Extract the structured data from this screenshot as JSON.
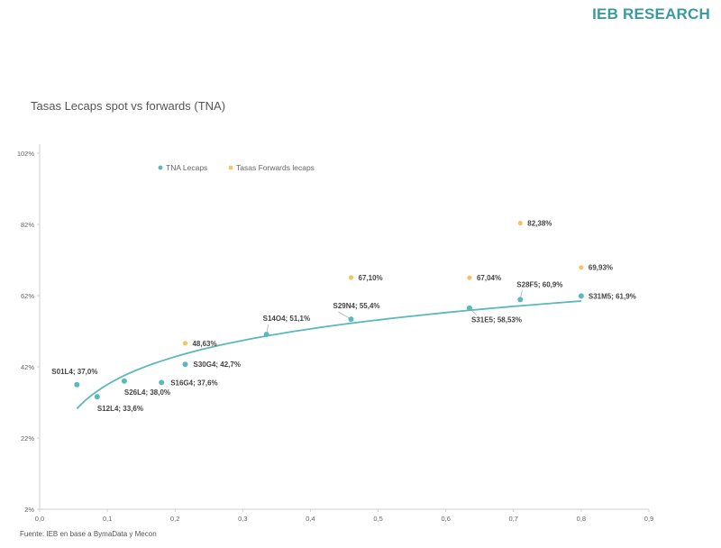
{
  "brand": "IEB RESEARCH",
  "source": "Fuente: IEB en base a BymaData y Mecon",
  "colors": {
    "spot": "#5bb8bd",
    "forward": "#f2c46a",
    "trend": "#5bb8bd",
    "axis": "#cfcfcf"
  },
  "chart_data": {
    "type": "scatter",
    "title": "Tasas Lecaps spot vs forwards (TNA)",
    "xlim": [
      0,
      0.9
    ],
    "ylim": [
      2,
      102
    ],
    "xticks": [
      0.0,
      0.1,
      0.2,
      0.3,
      0.4,
      0.5,
      0.6,
      0.7,
      0.8,
      0.9
    ],
    "xtick_labels": [
      "0,0",
      "0,1",
      "0,2",
      "0,3",
      "0,4",
      "0,5",
      "0,6",
      "0,7",
      "0,8",
      "0,9"
    ],
    "yticks": [
      2,
      22,
      42,
      62,
      82,
      102
    ],
    "ytick_labels": [
      "2%",
      "22%",
      "42%",
      "62%",
      "82%",
      "102%"
    ],
    "legend": {
      "position": "top-left",
      "entries": [
        "TNA Lecaps",
        "Tasas Forwards lecaps"
      ]
    },
    "series": [
      {
        "name": "TNA Lecaps",
        "points": [
          {
            "x": 0.055,
            "y": 37.0,
            "label": "S01L4; 37,0%"
          },
          {
            "x": 0.085,
            "y": 33.6,
            "label": "S12L4; 33,6%"
          },
          {
            "x": 0.125,
            "y": 38.0,
            "label": "S26L4; 38,0%"
          },
          {
            "x": 0.18,
            "y": 37.6,
            "label": "S16G4; 37,6%"
          },
          {
            "x": 0.215,
            "y": 42.7,
            "label": "S30G4; 42,7%"
          },
          {
            "x": 0.335,
            "y": 51.1,
            "label": "S14O4; 51,1%"
          },
          {
            "x": 0.46,
            "y": 55.4,
            "label": "S29N4; 55,4%"
          },
          {
            "x": 0.635,
            "y": 58.53,
            "label": "S31E5; 58,53%"
          },
          {
            "x": 0.71,
            "y": 60.9,
            "label": "S28F5; 60,9%"
          },
          {
            "x": 0.8,
            "y": 61.9,
            "label": "S31M5; 61,9%"
          }
        ]
      },
      {
        "name": "Tasas Forwards lecaps",
        "points": [
          {
            "x": 0.215,
            "y": 48.63,
            "label": "48,63%"
          },
          {
            "x": 0.46,
            "y": 67.1,
            "label": "67,10%"
          },
          {
            "x": 0.635,
            "y": 67.04,
            "label": "67,04%"
          },
          {
            "x": 0.71,
            "y": 82.38,
            "label": "82,38%"
          },
          {
            "x": 0.8,
            "y": 69.93,
            "label": "69,93%"
          }
        ]
      }
    ]
  }
}
